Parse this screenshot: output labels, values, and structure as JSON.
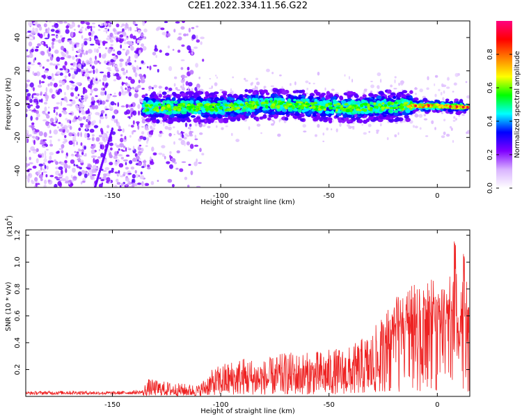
{
  "title": "C2E1.2022.334.11.56.G22",
  "chart_data": [
    {
      "type": "heatmap",
      "title": "C2E1.2022.334.11.56.G22",
      "xlabel": "Height of straight line (km)",
      "ylabel": "Frequency (Hz)",
      "xlim": [
        -190,
        15
      ],
      "ylim": [
        -50,
        50
      ],
      "x_ticks": [
        -150,
        -100,
        -50,
        0
      ],
      "y_ticks": [
        -40,
        -20,
        0,
        20,
        40
      ],
      "tick_labels_x": [
        "-150",
        "-100",
        "-50",
        "0"
      ],
      "tick_labels_y": [
        "-40",
        "-20",
        "0",
        "20",
        "40"
      ],
      "colorbar": {
        "label": "Normalized spectral amplitude",
        "range": [
          0.0,
          1.0
        ],
        "ticks": [
          0.0,
          0.2,
          0.4,
          0.6,
          0.8
        ],
        "tick_labels": [
          "0.0",
          "0.2",
          "0.4",
          "0.6",
          "0.8"
        ],
        "colormap": [
          "#ffffff",
          "#d9b3ff",
          "#8000ff",
          "#0000ff",
          "#00ffff",
          "#00ff00",
          "#ffff00",
          "#ff8000",
          "#ff0000",
          "#ff0080"
        ]
      },
      "features": {
        "noise_region_x": [
          -190,
          -108
        ],
        "band_start_x": -136,
        "band_center_hz": [
          {
            "x": -135,
            "hz": -2
          },
          {
            "x": -100,
            "hz": -2
          },
          {
            "x": -80,
            "hz": 0
          },
          {
            "x": -60,
            "hz": -1
          },
          {
            "x": -40,
            "hz": -2
          },
          {
            "x": -20,
            "hz": -1
          },
          {
            "x": 0,
            "hz": -1
          },
          {
            "x": 15,
            "hz": -2
          }
        ],
        "diagonal_streak": {
          "x": [
            -158,
            -150
          ],
          "hz": [
            -50,
            -15
          ]
        }
      },
      "grid": false
    },
    {
      "type": "line",
      "xlabel": "Height of straight line (km)",
      "ylabel": "SNR (10 * v/v)",
      "y_multiplier_label": "(x10",
      "y_multiplier_exp": "4",
      "y_multiplier_close": ")",
      "xlim": [
        -190,
        15
      ],
      "ylim": [
        0,
        12400
      ],
      "x_ticks": [
        -150,
        -100,
        -50,
        0
      ],
      "y_ticks": [
        2000,
        4000,
        6000,
        8000,
        10000,
        12000
      ],
      "tick_labels_x": [
        "-150",
        "-100",
        "-50",
        "0"
      ],
      "tick_labels_y": [
        "0.2",
        "0.4",
        "0.6",
        "0.8",
        "1.0",
        "1.2"
      ],
      "line_color": "#ee2222",
      "series": [
        {
          "x": [
            -190,
            -170,
            -150,
            -136,
            -134,
            -120,
            -110,
            -105,
            -100,
            -90,
            -80,
            -70,
            -60,
            -50,
            -40,
            -30,
            -25,
            -20,
            -15,
            -12,
            -10,
            -8,
            -5,
            -3,
            0,
            3,
            5,
            8,
            10,
            12,
            15
          ],
          "values": [
            350,
            400,
            350,
            450,
            1200,
            900,
            800,
            1700,
            2200,
            2700,
            2500,
            3000,
            3000,
            3200,
            3400,
            4500,
            5500,
            6500,
            7500,
            8200,
            7500,
            8000,
            7800,
            8000,
            7800,
            7200,
            7400,
            12300,
            4800,
            10800,
            6000
          ]
        }
      ],
      "grid": false
    }
  ]
}
